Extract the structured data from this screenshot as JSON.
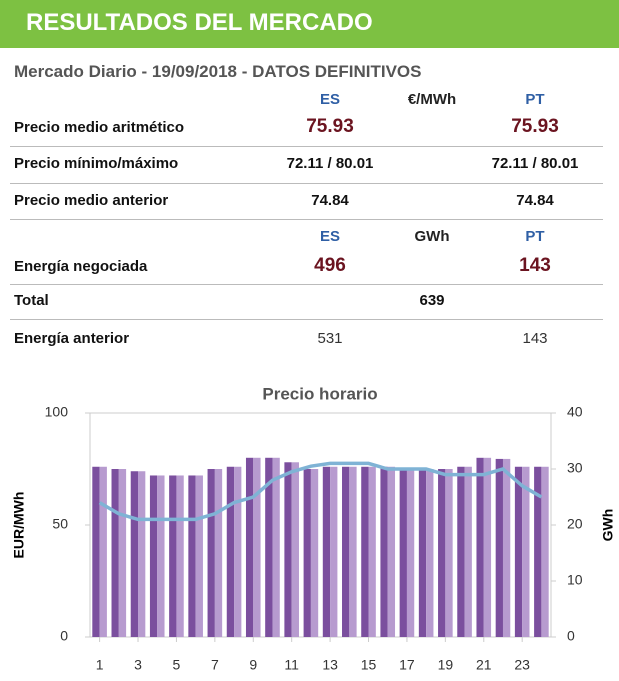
{
  "header": {
    "title": "RESULTADOS DEL MERCADO"
  },
  "table": {
    "subtitle": "Mercado Diario - 19/09/2018 - DATOS DEFINITIVOS",
    "rows": [
      {
        "es": "ES",
        "mid": "€/MWh",
        "pt": "PT"
      },
      {
        "label": "Precio medio aritmético",
        "es": "75.93",
        "pt": "75.93"
      },
      {
        "label": "Precio mínimo/máximo",
        "es": "72.11 / 80.01",
        "pt": "72.11 / 80.01"
      },
      {
        "label": "Precio medio anterior",
        "es": "74.84",
        "pt": "74.84"
      },
      {
        "es": "ES",
        "mid": "GWh",
        "pt": "PT"
      },
      {
        "label": "Energía negociada",
        "es": "496",
        "pt": "143"
      },
      {
        "label": "Total",
        "mid": "639"
      },
      {
        "label": "Energía anterior",
        "es": "531",
        "pt": "143"
      }
    ]
  },
  "chart_data": {
    "type": "bar",
    "title": "Precio horario",
    "ylabel": "EUR/MWh",
    "y2label": "GWh",
    "x": [
      1,
      2,
      3,
      4,
      5,
      6,
      7,
      8,
      9,
      10,
      11,
      12,
      13,
      14,
      15,
      16,
      17,
      18,
      19,
      20,
      21,
      22,
      23,
      24
    ],
    "xlim": [
      0.5,
      24.5
    ],
    "xticks": [
      1,
      3,
      5,
      7,
      9,
      11,
      13,
      15,
      17,
      19,
      21,
      23
    ],
    "ylim": [
      0,
      100
    ],
    "yticks": [
      0,
      50,
      100
    ],
    "y2lim": [
      0,
      40
    ],
    "y2ticks": [
      0,
      10,
      20,
      30,
      40
    ],
    "series": [
      {
        "color": "#7b4f9e",
        "values": [
          76,
          75,
          74,
          72.11,
          72.11,
          72.11,
          75,
          76,
          80.01,
          80.01,
          78,
          75,
          76,
          76,
          76,
          76,
          75,
          75,
          75,
          76,
          80,
          79.5,
          76,
          76
        ]
      },
      {
        "color": "#b79bcf",
        "values": [
          76,
          75,
          74,
          72.11,
          72.11,
          72.11,
          75,
          76,
          80.01,
          80.01,
          78,
          75,
          76,
          76,
          76,
          76,
          75,
          75,
          75,
          76,
          80,
          79.5,
          76,
          76
        ]
      },
      {
        "type": "line",
        "axis": "y2",
        "color": "#7fb3d5",
        "values": [
          24,
          22,
          21,
          21,
          21,
          21,
          22,
          24,
          25,
          28,
          29.5,
          30.5,
          31,
          31,
          31,
          30,
          30,
          30,
          29,
          29,
          29,
          30,
          27,
          25
        ]
      }
    ]
  }
}
